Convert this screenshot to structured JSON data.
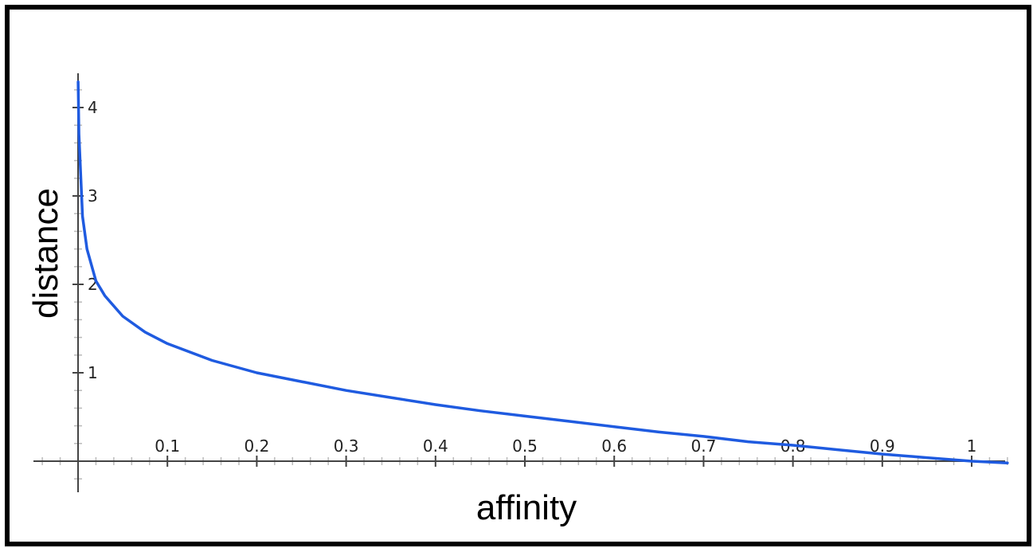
{
  "chart_data": {
    "type": "line",
    "title": "",
    "xlabel": "affinity",
    "ylabel": "distance",
    "xlim": [
      0,
      1.04
    ],
    "ylim": [
      0,
      4.4
    ],
    "x_ticks": [
      0.1,
      0.2,
      0.3,
      0.4,
      0.5,
      0.6,
      0.7,
      0.8,
      0.9,
      1
    ],
    "x_tick_labels": [
      "0.1",
      "0.2",
      "0.3",
      "0.4",
      "0.5",
      "0.6",
      "0.7",
      "0.8",
      "0.9",
      "1"
    ],
    "y_ticks": [
      1,
      2,
      3,
      4
    ],
    "y_tick_labels": [
      "1",
      "2",
      "3",
      "4"
    ],
    "grid": false,
    "legend": "none",
    "series": [
      {
        "color": "#1f5be0",
        "x": [
          0.0001,
          0.001,
          0.005,
          0.01,
          0.02,
          0.03,
          0.05,
          0.075,
          0.1,
          0.15,
          0.2,
          0.25,
          0.3,
          0.35,
          0.4,
          0.45,
          0.5,
          0.55,
          0.6,
          0.65,
          0.7,
          0.75,
          0.8,
          0.85,
          0.9,
          0.95,
          1.0,
          1.04
        ],
        "y": [
          4.29,
          3.7,
          2.77,
          2.4,
          2.04,
          1.87,
          1.64,
          1.46,
          1.33,
          1.14,
          1.0,
          0.9,
          0.8,
          0.72,
          0.64,
          0.57,
          0.51,
          0.45,
          0.39,
          0.33,
          0.28,
          0.22,
          0.18,
          0.13,
          0.08,
          0.04,
          0.0,
          -0.02
        ]
      }
    ]
  }
}
